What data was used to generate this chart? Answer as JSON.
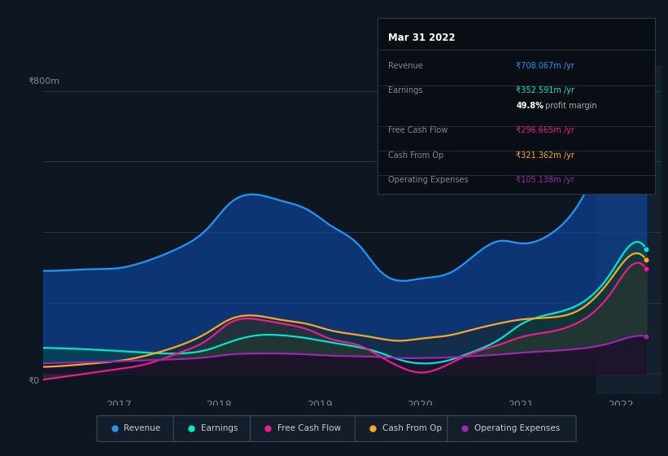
{
  "bg_color": "#0e1621",
  "chart_bg": "#0e1621",
  "grid_color": "#1a2535",
  "ylabel_text": "₹800m",
  "y0_text": "₹0",
  "series": {
    "Revenue": {
      "color": "#2196f3",
      "fill_color": "#0d47a1",
      "fill_alpha": 0.65,
      "x": [
        2016.25,
        2016.5,
        2016.75,
        2017.0,
        2017.3,
        2017.6,
        2017.9,
        2018.1,
        2018.4,
        2018.6,
        2018.9,
        2019.1,
        2019.4,
        2019.6,
        2019.8,
        2020.0,
        2020.3,
        2020.5,
        2020.8,
        2021.0,
        2021.3,
        2021.6,
        2021.9,
        2022.1,
        2022.25
      ],
      "y": [
        290,
        292,
        295,
        298,
        320,
        355,
        415,
        480,
        505,
        490,
        460,
        420,
        360,
        290,
        262,
        268,
        285,
        325,
        375,
        368,
        395,
        490,
        670,
        755,
        708
      ]
    },
    "Earnings": {
      "color": "#00e5cc",
      "fill_color": "#004d40",
      "fill_alpha": 0.5,
      "x": [
        2016.25,
        2016.5,
        2016.75,
        2017.0,
        2017.3,
        2017.6,
        2017.9,
        2018.1,
        2018.4,
        2018.6,
        2018.9,
        2019.1,
        2019.4,
        2019.6,
        2019.8,
        2020.0,
        2020.3,
        2020.5,
        2020.8,
        2021.0,
        2021.3,
        2021.6,
        2021.9,
        2022.1,
        2022.25
      ],
      "y": [
        72,
        70,
        67,
        63,
        58,
        56,
        68,
        88,
        108,
        108,
        98,
        88,
        73,
        58,
        38,
        28,
        38,
        58,
        98,
        138,
        168,
        198,
        285,
        365,
        352
      ]
    },
    "FreeCashFlow": {
      "color": "#e91e8c",
      "fill_color": "#424242",
      "fill_alpha": 0.45,
      "x": [
        2016.25,
        2016.5,
        2016.75,
        2017.0,
        2017.3,
        2017.6,
        2017.9,
        2018.1,
        2018.4,
        2018.6,
        2018.9,
        2019.1,
        2019.4,
        2019.6,
        2019.8,
        2020.0,
        2020.3,
        2020.5,
        2020.8,
        2021.0,
        2021.3,
        2021.6,
        2021.9,
        2022.1,
        2022.25
      ],
      "y": [
        -18,
        -8,
        2,
        12,
        28,
        58,
        98,
        142,
        152,
        142,
        122,
        98,
        78,
        48,
        18,
        2,
        28,
        55,
        82,
        102,
        118,
        148,
        228,
        305,
        296
      ]
    },
    "CashFromOp": {
      "color": "#ffa726",
      "fill_color": "#212100",
      "fill_alpha": 0.35,
      "x": [
        2016.25,
        2016.5,
        2016.75,
        2017.0,
        2017.3,
        2017.6,
        2017.9,
        2018.1,
        2018.4,
        2018.6,
        2018.9,
        2019.1,
        2019.4,
        2019.6,
        2019.8,
        2020.0,
        2020.3,
        2020.5,
        2020.8,
        2021.0,
        2021.3,
        2021.6,
        2021.9,
        2022.1,
        2022.25
      ],
      "y": [
        18,
        22,
        28,
        35,
        52,
        78,
        118,
        152,
        162,
        152,
        138,
        122,
        108,
        98,
        92,
        98,
        108,
        122,
        142,
        152,
        158,
        182,
        268,
        335,
        321
      ]
    },
    "OperatingExpenses": {
      "color": "#9c27b0",
      "fill_color": "#1a0026",
      "fill_alpha": 0.6,
      "x": [
        2016.25,
        2016.5,
        2016.75,
        2017.0,
        2017.3,
        2017.6,
        2017.9,
        2018.1,
        2018.4,
        2018.6,
        2018.9,
        2019.1,
        2019.4,
        2019.6,
        2019.8,
        2020.0,
        2020.3,
        2020.5,
        2020.8,
        2021.0,
        2021.3,
        2021.6,
        2021.9,
        2022.1,
        2022.25
      ],
      "y": [
        28,
        30,
        32,
        34,
        37,
        40,
        46,
        53,
        56,
        56,
        53,
        50,
        48,
        46,
        43,
        43,
        45,
        48,
        53,
        58,
        63,
        70,
        86,
        103,
        105
      ]
    }
  },
  "tooltip": {
    "date": "Mar 31 2022",
    "rows": [
      {
        "label": "Revenue",
        "value": "₹708.067m /yr",
        "value_color": "#2196f3"
      },
      {
        "label": "Earnings",
        "value": "₹352.591m /yr",
        "value_color": "#00e5cc"
      },
      {
        "label": "",
        "value": "49.8% profit margin",
        "value_color": "#ffffff"
      },
      {
        "label": "Free Cash Flow",
        "value": "₹296.665m /yr",
        "value_color": "#e91e8c"
      },
      {
        "label": "Cash From Op",
        "value": "₹321.362m /yr",
        "value_color": "#ffa726"
      },
      {
        "label": "Operating Expenses",
        "value": "₹105.138m /yr",
        "value_color": "#9c27b0"
      }
    ]
  },
  "legend": [
    {
      "label": "Revenue",
      "color": "#2196f3"
    },
    {
      "label": "Earnings",
      "color": "#00e5cc"
    },
    {
      "label": "Free Cash Flow",
      "color": "#e91e8c"
    },
    {
      "label": "Cash From Op",
      "color": "#ffa726"
    },
    {
      "label": "Operating Expenses",
      "color": "#9c27b0"
    }
  ],
  "xlim": [
    2016.25,
    2022.4
  ],
  "ylim": [
    -60,
    870
  ],
  "xticks": [
    2017,
    2018,
    2019,
    2020,
    2021,
    2022
  ],
  "highlight_x_start": 2021.75,
  "highlight_x_end": 2022.4
}
